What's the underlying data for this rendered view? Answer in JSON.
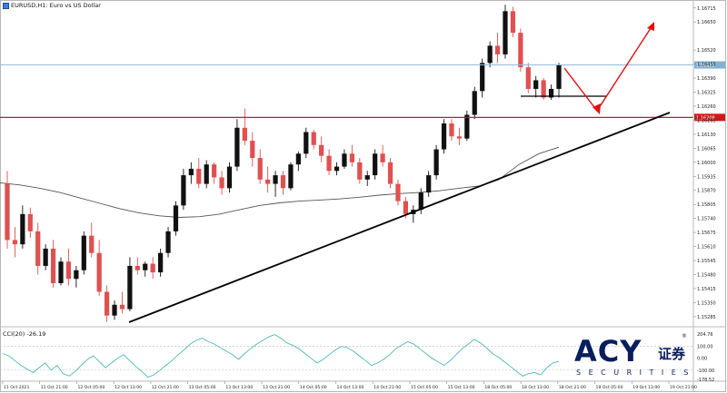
{
  "chart_title": "EURUSD,H1:  Euro vs US Dollar",
  "indicator_label": "CCI(20) -26.19",
  "price_axis_labels": [
    "1.16715",
    "1.16650",
    "1.16520",
    "1.16455",
    "1.16390",
    "1.16325",
    "1.16260",
    "1.16195",
    "1.16130",
    "1.16065",
    "1.16000",
    "1.15935",
    "1.15870",
    "1.15805",
    "1.15740",
    "1.15675",
    "1.15610",
    "1.15545",
    "1.15480",
    "1.15415",
    "1.15350",
    "1.15285"
  ],
  "current_price_tag": "1.16451",
  "level_price_tag": "1.16208",
  "cci_axis_labels": [
    "204.76",
    "100.00",
    "0.00",
    "-100.00",
    "-178.52"
  ],
  "time_axis_labels": [
    "11 Oct 2021",
    "11 Oct 21:00",
    "12 Oct 05:00",
    "12 Oct 13:00",
    "12 Oct 21:00",
    "13 Oct 05:00",
    "13 Oct 13:00",
    "13 Oct 21:00",
    "14 Oct 05:00",
    "14 Oct 13:00",
    "14 Oct 21:00",
    "15 Oct 05:00",
    "15 Oct 13:00",
    "18 Oct 05:00",
    "18 Oct 13:00",
    "18 Oct 21:00",
    "19 Oct 05:00",
    "19 Oct 13:00",
    "19 Oct 21:00"
  ],
  "logo": {
    "brand": "ACY",
    "cn": "证券",
    "sub": "SECURITIES",
    "reg": "®"
  },
  "colors": {
    "bull": "#111111",
    "bear": "#e05050",
    "horizontal_line": "#d01818",
    "current_line": "#8fbcd8",
    "ma": "#555555",
    "cci": "#4fb8b0",
    "annotation": "#e01010",
    "trendline": "#000000"
  },
  "chart_data": [
    {
      "type": "candlestick",
      "title": "EURUSD,H1:  Euro vs US Dollar",
      "y_range": [
        1.15255,
        1.16735
      ],
      "horizontal_levels": [
        1.16208,
        1.16451
      ],
      "candles": [
        {
          "o": 1.159,
          "h": 1.1596,
          "l": 1.156,
          "c": 1.1564
        },
        {
          "o": 1.1564,
          "h": 1.157,
          "l": 1.1556,
          "c": 1.1562
        },
        {
          "o": 1.1562,
          "h": 1.158,
          "l": 1.156,
          "c": 1.1576
        },
        {
          "o": 1.1576,
          "h": 1.1579,
          "l": 1.1565,
          "c": 1.1568
        },
        {
          "o": 1.1568,
          "h": 1.1572,
          "l": 1.1548,
          "c": 1.1552
        },
        {
          "o": 1.1552,
          "h": 1.1562,
          "l": 1.155,
          "c": 1.156
        },
        {
          "o": 1.156,
          "h": 1.1564,
          "l": 1.1542,
          "c": 1.1544
        },
        {
          "o": 1.1544,
          "h": 1.1556,
          "l": 1.1543,
          "c": 1.1554
        },
        {
          "o": 1.1554,
          "h": 1.156,
          "l": 1.1543,
          "c": 1.1546
        },
        {
          "o": 1.1546,
          "h": 1.1552,
          "l": 1.1542,
          "c": 1.155
        },
        {
          "o": 1.155,
          "h": 1.1568,
          "l": 1.1548,
          "c": 1.1566
        },
        {
          "o": 1.1566,
          "h": 1.1572,
          "l": 1.1556,
          "c": 1.1558
        },
        {
          "o": 1.1558,
          "h": 1.1564,
          "l": 1.1538,
          "c": 1.154
        },
        {
          "o": 1.154,
          "h": 1.1543,
          "l": 1.1526,
          "c": 1.1529
        },
        {
          "o": 1.1529,
          "h": 1.1536,
          "l": 1.1527,
          "c": 1.1534
        },
        {
          "o": 1.1534,
          "h": 1.154,
          "l": 1.153,
          "c": 1.1532
        },
        {
          "o": 1.1532,
          "h": 1.1556,
          "l": 1.1531,
          "c": 1.1552
        },
        {
          "o": 1.1552,
          "h": 1.1556,
          "l": 1.1548,
          "c": 1.155
        },
        {
          "o": 1.155,
          "h": 1.1554,
          "l": 1.1547,
          "c": 1.1553
        },
        {
          "o": 1.1553,
          "h": 1.1556,
          "l": 1.1546,
          "c": 1.1549
        },
        {
          "o": 1.1549,
          "h": 1.156,
          "l": 1.1547,
          "c": 1.1558
        },
        {
          "o": 1.1558,
          "h": 1.157,
          "l": 1.1556,
          "c": 1.1568
        },
        {
          "o": 1.1568,
          "h": 1.1582,
          "l": 1.1566,
          "c": 1.158
        },
        {
          "o": 1.158,
          "h": 1.1597,
          "l": 1.1578,
          "c": 1.1594
        },
        {
          "o": 1.1594,
          "h": 1.16,
          "l": 1.159,
          "c": 1.1597
        },
        {
          "o": 1.1597,
          "h": 1.1602,
          "l": 1.1588,
          "c": 1.159
        },
        {
          "o": 1.159,
          "h": 1.1601,
          "l": 1.1588,
          "c": 1.1599
        },
        {
          "o": 1.1599,
          "h": 1.16,
          "l": 1.159,
          "c": 1.1593
        },
        {
          "o": 1.1593,
          "h": 1.1596,
          "l": 1.1585,
          "c": 1.1588
        },
        {
          "o": 1.1588,
          "h": 1.16,
          "l": 1.1586,
          "c": 1.1598
        },
        {
          "o": 1.1598,
          "h": 1.162,
          "l": 1.1596,
          "c": 1.1616
        },
        {
          "o": 1.1616,
          "h": 1.1625,
          "l": 1.1608,
          "c": 1.161
        },
        {
          "o": 1.161,
          "h": 1.1614,
          "l": 1.1598,
          "c": 1.1602
        },
        {
          "o": 1.1602,
          "h": 1.1606,
          "l": 1.159,
          "c": 1.1592
        },
        {
          "o": 1.1592,
          "h": 1.1598,
          "l": 1.1586,
          "c": 1.159
        },
        {
          "o": 1.159,
          "h": 1.1596,
          "l": 1.1584,
          "c": 1.1594
        },
        {
          "o": 1.1594,
          "h": 1.1596,
          "l": 1.1585,
          "c": 1.1588
        },
        {
          "o": 1.1588,
          "h": 1.16,
          "l": 1.1587,
          "c": 1.1599
        },
        {
          "o": 1.1599,
          "h": 1.1605,
          "l": 1.1596,
          "c": 1.1604
        },
        {
          "o": 1.1604,
          "h": 1.1616,
          "l": 1.1602,
          "c": 1.1614
        },
        {
          "o": 1.1614,
          "h": 1.1615,
          "l": 1.1606,
          "c": 1.1608
        },
        {
          "o": 1.1608,
          "h": 1.1612,
          "l": 1.16,
          "c": 1.1603
        },
        {
          "o": 1.1603,
          "h": 1.1606,
          "l": 1.1594,
          "c": 1.1596
        },
        {
          "o": 1.1596,
          "h": 1.16,
          "l": 1.1594,
          "c": 1.1598
        },
        {
          "o": 1.1598,
          "h": 1.1606,
          "l": 1.1597,
          "c": 1.1604
        },
        {
          "o": 1.1604,
          "h": 1.1608,
          "l": 1.1598,
          "c": 1.16
        },
        {
          "o": 1.16,
          "h": 1.1602,
          "l": 1.159,
          "c": 1.1592
        },
        {
          "o": 1.1592,
          "h": 1.1596,
          "l": 1.1589,
          "c": 1.1594
        },
        {
          "o": 1.1594,
          "h": 1.1606,
          "l": 1.1592,
          "c": 1.1604
        },
        {
          "o": 1.1604,
          "h": 1.1608,
          "l": 1.1598,
          "c": 1.16
        },
        {
          "o": 1.16,
          "h": 1.1602,
          "l": 1.1588,
          "c": 1.159
        },
        {
          "o": 1.159,
          "h": 1.1592,
          "l": 1.158,
          "c": 1.1582
        },
        {
          "o": 1.1582,
          "h": 1.1584,
          "l": 1.1574,
          "c": 1.1576
        },
        {
          "o": 1.1576,
          "h": 1.158,
          "l": 1.1572,
          "c": 1.1578
        },
        {
          "o": 1.1578,
          "h": 1.1588,
          "l": 1.1576,
          "c": 1.1586
        },
        {
          "o": 1.1586,
          "h": 1.1596,
          "l": 1.1584,
          "c": 1.1594
        },
        {
          "o": 1.1594,
          "h": 1.1608,
          "l": 1.1592,
          "c": 1.1606
        },
        {
          "o": 1.1606,
          "h": 1.162,
          "l": 1.1604,
          "c": 1.1618
        },
        {
          "o": 1.1618,
          "h": 1.162,
          "l": 1.161,
          "c": 1.1612
        },
        {
          "o": 1.1612,
          "h": 1.1616,
          "l": 1.1608,
          "c": 1.1611
        },
        {
          "o": 1.1611,
          "h": 1.1624,
          "l": 1.161,
          "c": 1.1622
        },
        {
          "o": 1.1622,
          "h": 1.1635,
          "l": 1.162,
          "c": 1.1633
        },
        {
          "o": 1.1633,
          "h": 1.1648,
          "l": 1.163,
          "c": 1.1646
        },
        {
          "o": 1.1646,
          "h": 1.1656,
          "l": 1.1644,
          "c": 1.1654
        },
        {
          "o": 1.1654,
          "h": 1.166,
          "l": 1.1646,
          "c": 1.165
        },
        {
          "o": 1.165,
          "h": 1.1673,
          "l": 1.1648,
          "c": 1.167
        },
        {
          "o": 1.167,
          "h": 1.1672,
          "l": 1.1658,
          "c": 1.166
        },
        {
          "o": 1.166,
          "h": 1.1662,
          "l": 1.1642,
          "c": 1.1644
        },
        {
          "o": 1.1644,
          "h": 1.1646,
          "l": 1.1632,
          "c": 1.1634
        },
        {
          "o": 1.1634,
          "h": 1.164,
          "l": 1.163,
          "c": 1.1638
        },
        {
          "o": 1.1638,
          "h": 1.1639,
          "l": 1.1629,
          "c": 1.163
        },
        {
          "o": 1.163,
          "h": 1.1636,
          "l": 1.1629,
          "c": 1.1634
        },
        {
          "o": 1.1634,
          "h": 1.1646,
          "l": 1.163,
          "c": 1.1645
        }
      ],
      "moving_average": [
        1.15905,
        1.15895,
        1.1588,
        1.1586,
        1.15835,
        1.1581,
        1.15785,
        1.15765,
        1.15752,
        1.15745,
        1.15748,
        1.1576,
        1.1578,
        1.158,
        1.15812,
        1.1582,
        1.15825,
        1.1583,
        1.15838,
        1.15848,
        1.15855,
        1.1586,
        1.15868,
        1.1588,
        1.1589,
        1.1592,
        1.1599,
        1.1604,
        1.1607
      ]
    },
    {
      "type": "line",
      "title": "CCI(20) -26.19",
      "y_range": [
        -178.52,
        204.76
      ],
      "levels": [
        100,
        -100
      ],
      "values": [
        40,
        20,
        -20,
        -60,
        -90,
        -120,
        -80,
        -40,
        -100,
        -60,
        -130,
        -150,
        -110,
        -60,
        -10,
        20,
        -30,
        -80,
        -40,
        0,
        30,
        -20,
        -70,
        -110,
        -160,
        -140,
        -100,
        -60,
        -20,
        30,
        70,
        120,
        150,
        170,
        140,
        120,
        90,
        60,
        30,
        -10,
        40,
        80,
        120,
        150,
        180,
        200,
        170,
        130,
        110,
        80,
        40,
        0,
        -40,
        -10,
        30,
        70,
        100,
        90,
        60,
        20,
        -20,
        -60,
        -40,
        -10,
        30,
        80,
        110,
        140,
        120,
        80,
        40,
        0,
        -30,
        -60,
        -20,
        30,
        80,
        120,
        160,
        130,
        90,
        40,
        10,
        -30,
        -70,
        -110,
        -150,
        -130,
        -120,
        -140,
        -80,
        -40,
        -26
      ]
    }
  ]
}
